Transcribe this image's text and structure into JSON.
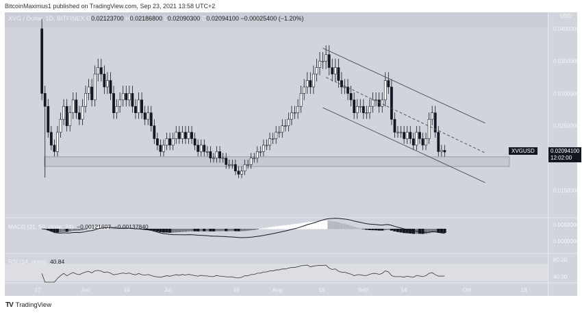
{
  "header": {
    "published": "BitcoinMaximus1 published on TradingView.com, Sep 23, 2021 13:58 UTC+2"
  },
  "legend": {
    "symbol": "XVG / Dollar, 1D, BITFINEX",
    "o_label": "O",
    "open": "0.02123700",
    "h_label": "H",
    "high": "0.02186800",
    "l_label": "L",
    "low": "0.02090300",
    "c_label": "C",
    "close": "0.02094100",
    "change": "−0.00025400 (−1.20%)"
  },
  "price_axis": {
    "currency": "USD",
    "ticks": [
      "0.04000000",
      "0.03500000",
      "0.03000000",
      "0.02500000",
      "0.01500000"
    ],
    "last_price": "0.02094100",
    "countdown": "12:02:00",
    "symbol_tag": "XVGUSD"
  },
  "macd": {
    "label": "MACD (21, 50, close, 24)",
    "value1": "−0.00121607",
    "value2": "−0.00137840",
    "ticks": [
      "0.00500000",
      "0.00000000"
    ]
  },
  "rsi": {
    "label": "RSI (14, close)",
    "value": "40.84",
    "ticks": [
      "80.00",
      "40.00"
    ]
  },
  "time_axis": {
    "ticks": [
      "17",
      "Jun",
      "14",
      "Jul",
      "19",
      "Aug",
      "16",
      "Sep",
      "14",
      "Oct",
      "18"
    ]
  },
  "footer": {
    "brand": "TradingView"
  },
  "chart_data": {
    "type": "candlestick",
    "symbol": "XVGUSD",
    "timeframe": "1D",
    "exchange": "BITFINEX",
    "start_date": "2021-05-18",
    "end_date": "2021-09-23",
    "closes": [
      0.03,
      0.028,
      0.024,
      0.022,
      0.021,
      0.024,
      0.026,
      0.028,
      0.025,
      0.027,
      0.029,
      0.027,
      0.026,
      0.028,
      0.03,
      0.031,
      0.029,
      0.033,
      0.034,
      0.033,
      0.031,
      0.032,
      0.03,
      0.027,
      0.028,
      0.029,
      0.03,
      0.029,
      0.03,
      0.028,
      0.027,
      0.029,
      0.027,
      0.026,
      0.027,
      0.025,
      0.023,
      0.022,
      0.021,
      0.022,
      0.023,
      0.022,
      0.023,
      0.024,
      0.023,
      0.024,
      0.023,
      0.024,
      0.023,
      0.022,
      0.021,
      0.022,
      0.021,
      0.021,
      0.02,
      0.02,
      0.021,
      0.02,
      0.02,
      0.019,
      0.019,
      0.019,
      0.018,
      0.0175,
      0.018,
      0.019,
      0.019,
      0.02,
      0.02,
      0.021,
      0.021,
      0.022,
      0.022,
      0.023,
      0.023,
      0.024,
      0.024,
      0.025,
      0.025,
      0.026,
      0.027,
      0.027,
      0.028,
      0.03,
      0.031,
      0.032,
      0.031,
      0.033,
      0.034,
      0.035,
      0.035,
      0.036,
      0.034,
      0.033,
      0.034,
      0.032,
      0.031,
      0.031,
      0.03,
      0.029,
      0.027,
      0.028,
      0.028,
      0.027,
      0.027,
      0.028,
      0.029,
      0.029,
      0.028,
      0.029,
      0.032,
      0.031,
      0.026,
      0.024,
      0.024,
      0.024,
      0.023,
      0.024,
      0.023,
      0.022,
      0.024,
      0.023,
      0.022,
      0.023,
      0.026,
      0.027,
      0.024,
      0.021,
      0.0212,
      0.02094
    ],
    "first_open": 0.04,
    "support_zone": [
      0.0187,
      0.0202
    ],
    "channel": {
      "upper": [
        [
          "2021-08-16",
          0.037
        ],
        [
          "2021-10-07",
          0.0254
        ]
      ],
      "middle": [
        [
          "2021-08-17",
          0.0325
        ],
        [
          "2021-10-07",
          0.0208
        ]
      ],
      "lower": [
        [
          "2021-08-16",
          0.0278
        ],
        [
          "2021-10-07",
          0.0162
        ]
      ]
    },
    "y_range": [
      0.0115,
      0.0415
    ],
    "colors": {
      "up": "#ffffff",
      "down": "#131722",
      "background": "#d1d4dc",
      "zone": "#c5c8d0"
    }
  }
}
